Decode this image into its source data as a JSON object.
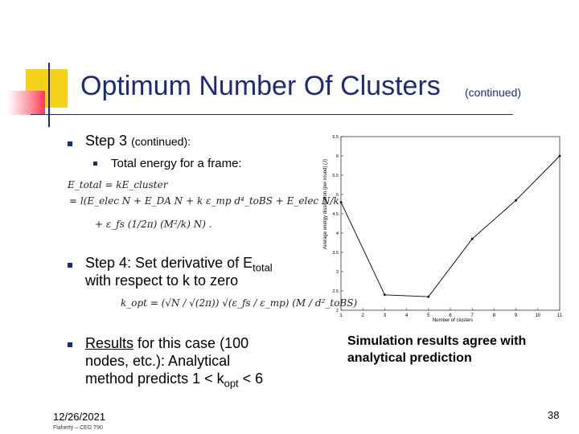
{
  "slide": {
    "title": "Optimum Number Of Clusters",
    "title_suffix": "(continued)",
    "bullets": {
      "step3_label": "Step 3",
      "step3_suffix": "(continued):",
      "sub_energy": "Total energy for a frame:",
      "step4_line1_prefix": "Step 4: Set derivative of E",
      "step4_line1_sub": "total",
      "step4_line2": "with respect to k to zero",
      "results_underlined": "Results",
      "results_line1_rest": " for this case (100",
      "results_line2": "nodes, etc.): Analytical",
      "results_line3_prefix": "method predicts  1 < k",
      "results_line3_sub": "opt",
      "results_line3_suffix": " < 6"
    },
    "equations": {
      "e1": "E_total = kE_cluster",
      "e2": "= l(E_elec N + E_DA N + k ε_mp d⁴_toBS + E_elec N/k",
      "e3": "+ ε_fs (1/2π) (M²/k) N) .",
      "e4": "k_opt = (√N / √(2π)) √(ε_fs / ε_mp) (M / d²_toBS)"
    },
    "caption": "Simulation results agree with analytical prediction",
    "footer": {
      "date": "12/26/2021",
      "author": "Flaherty – CEG 790",
      "page": "38"
    }
  },
  "chart_data": {
    "type": "line",
    "x": [
      1,
      3,
      5,
      7,
      9,
      11
    ],
    "y": [
      4.8,
      2.4,
      2.35,
      3.85,
      4.85,
      6.0
    ],
    "xlabel": "Number of clusters",
    "ylabel": "Average energy dissipation (per round) (J)",
    "xlim": [
      1,
      11
    ],
    "ylim": [
      2,
      6.5
    ],
    "xticks": [
      1,
      2,
      3,
      4,
      5,
      6,
      7,
      8,
      9,
      10,
      11
    ],
    "yticks": [
      2,
      2.5,
      3,
      3.5,
      4,
      4.5,
      5,
      5.5,
      6,
      6.5
    ],
    "grid": false,
    "color": "#000000"
  }
}
